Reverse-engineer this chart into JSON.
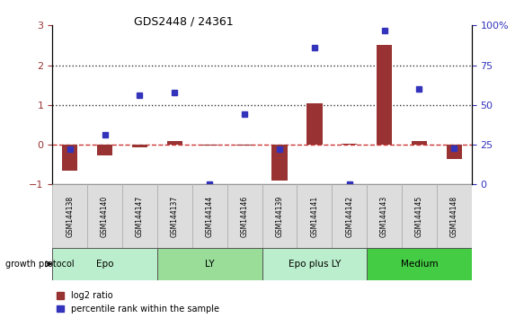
{
  "title": "GDS2448 / 24361",
  "samples": [
    "GSM144138",
    "GSM144140",
    "GSM144147",
    "GSM144137",
    "GSM144144",
    "GSM144146",
    "GSM144139",
    "GSM144141",
    "GSM144142",
    "GSM144143",
    "GSM144145",
    "GSM144148"
  ],
  "log2_ratio": [
    -0.65,
    -0.28,
    -0.07,
    0.1,
    -0.03,
    -0.03,
    -0.9,
    1.05,
    0.02,
    2.5,
    0.1,
    -0.35
  ],
  "pct_rank_right": [
    22,
    31,
    56,
    58,
    0,
    44,
    22,
    86,
    0,
    97,
    60,
    23
  ],
  "groups": [
    {
      "label": "Epo",
      "start": 0,
      "end": 3,
      "color": "#bbeecc"
    },
    {
      "label": "LY",
      "start": 3,
      "end": 6,
      "color": "#99dd99"
    },
    {
      "label": "Epo plus LY",
      "start": 6,
      "end": 9,
      "color": "#bbeecc"
    },
    {
      "label": "Medium",
      "start": 9,
      "end": 12,
      "color": "#44cc44"
    }
  ],
  "ylim_left": [
    -1,
    3
  ],
  "ylim_right": [
    0,
    100
  ],
  "yticks_left": [
    -1,
    0,
    1,
    2,
    3
  ],
  "yticks_right": [
    0,
    25,
    50,
    75,
    100
  ],
  "bar_color": "#993333",
  "dot_color": "#3333bb",
  "hline_color": "#cc3333",
  "dotted_line_color": "#333333",
  "bg_color": "#ffffff",
  "legend_log2": "log2 ratio",
  "legend_pct": "percentile rank within the sample",
  "growth_protocol_label": "growth protocol"
}
